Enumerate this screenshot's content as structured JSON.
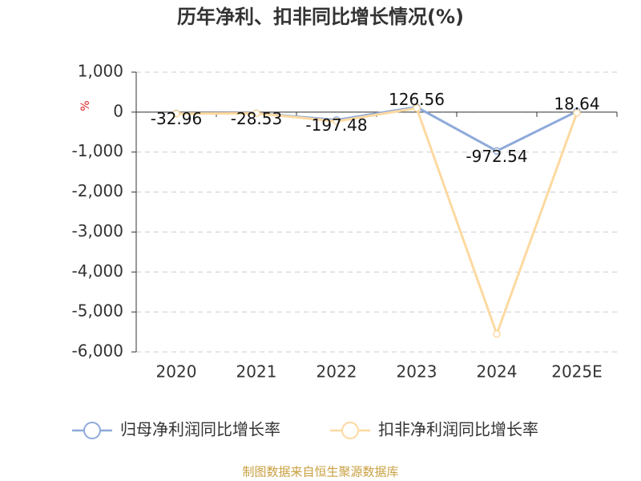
{
  "chart_data": {
    "type": "line",
    "title": "历年净利、扣非同比增长情况(%)",
    "y_label": "%",
    "categories": [
      "2020",
      "2021",
      "2022",
      "2023",
      "2024",
      "2025E"
    ],
    "series": [
      {
        "name": "归母净利润同比增长率",
        "color": "#8eaadb",
        "values": [
          -32.96,
          -28.53,
          -197.48,
          126.56,
          -972.54,
          18.64
        ],
        "show_labels": true
      },
      {
        "name": "扣非净利润同比增长率",
        "color": "#fdd9a0",
        "values": [
          -40,
          -30,
          -230,
          100,
          -5550,
          -20
        ],
        "show_labels": false
      }
    ],
    "ylim": [
      -6000,
      1000
    ],
    "yticks": [
      {
        "value": 1000,
        "label": "1,000"
      },
      0,
      {
        "value": -1000,
        "label": "-1,000"
      },
      {
        "value": -2000,
        "label": "-2,000"
      },
      {
        "value": -3000,
        "label": "-3,000"
      },
      {
        "value": -4000,
        "label": "-4,000"
      },
      {
        "value": -5000,
        "label": "-5,000"
      },
      {
        "value": -6000,
        "label": "-6,000"
      }
    ],
    "grid": true,
    "source": "制图数据来自恒生聚源数据库"
  }
}
